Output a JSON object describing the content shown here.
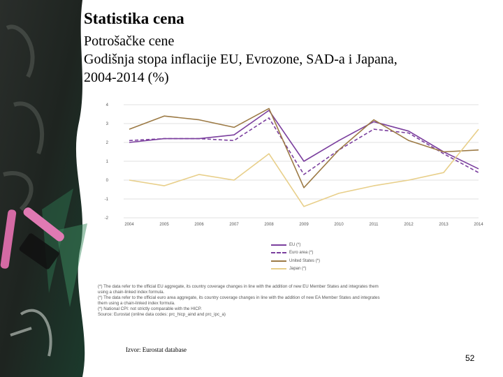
{
  "slide": {
    "title": "Statistika cena",
    "subtitle_line1": "Potrošačke cene",
    "subtitle_line2": "Godišnja stopa inflacije EU, Evrozone, SAD-a i Japana,",
    "subtitle_line3": "2004-2014 (%)",
    "source": "Izvor: Eurostat database",
    "page_number": "52"
  },
  "notes": [
    "(*) The data refer to the official EU aggregate, its country coverage changes in line with the addition of new EU Member States and integrates them",
    "using a chain-linked index formula.",
    "(*) The data refer to the official euro area aggregate, its country coverage changes in line with the addition of new EA Member States and integrates",
    "them using a chain-linked index formula.",
    "(*) National CPI: not strictly comparable with the HICP.",
    "Source: Eurostat (online data codes: prc_hicp_aind and prc_ipc_a)"
  ],
  "colors": {
    "eu": "#7b3f9e",
    "euro_area": "#7b3f9e",
    "us": "#9c7a45",
    "japan": "#e8cf8a",
    "grid": "#d9d9d9",
    "chalkboard": "#1f2a24"
  },
  "chart_data": {
    "type": "line",
    "x": [
      "2004",
      "2005",
      "2006",
      "2007",
      "2008",
      "2009",
      "2010",
      "2011",
      "2012",
      "2013",
      "2014"
    ],
    "ylim": [
      -2,
      4
    ],
    "yticks": [
      "4",
      "3",
      "2",
      "1",
      "0",
      "-1",
      "-2"
    ],
    "grid": true,
    "legend_position": "bottom-right",
    "series": [
      {
        "name": "EU (*)",
        "style": "solid",
        "values": [
          2.0,
          2.2,
          2.2,
          2.4,
          3.7,
          1.0,
          2.1,
          3.1,
          2.6,
          1.5,
          0.6
        ]
      },
      {
        "name": "Euro area (*)",
        "style": "dashed",
        "values": [
          2.1,
          2.2,
          2.2,
          2.1,
          3.3,
          0.3,
          1.6,
          2.7,
          2.5,
          1.4,
          0.4
        ]
      },
      {
        "name": "United States (*)",
        "style": "solid",
        "values": [
          2.7,
          3.4,
          3.2,
          2.8,
          3.8,
          -0.4,
          1.6,
          3.2,
          2.1,
          1.5,
          1.6
        ]
      },
      {
        "name": "Japan (*)",
        "style": "solid",
        "values": [
          0.0,
          -0.3,
          0.3,
          0.0,
          1.4,
          -1.4,
          -0.7,
          -0.3,
          0.0,
          0.4,
          2.7
        ]
      }
    ]
  }
}
